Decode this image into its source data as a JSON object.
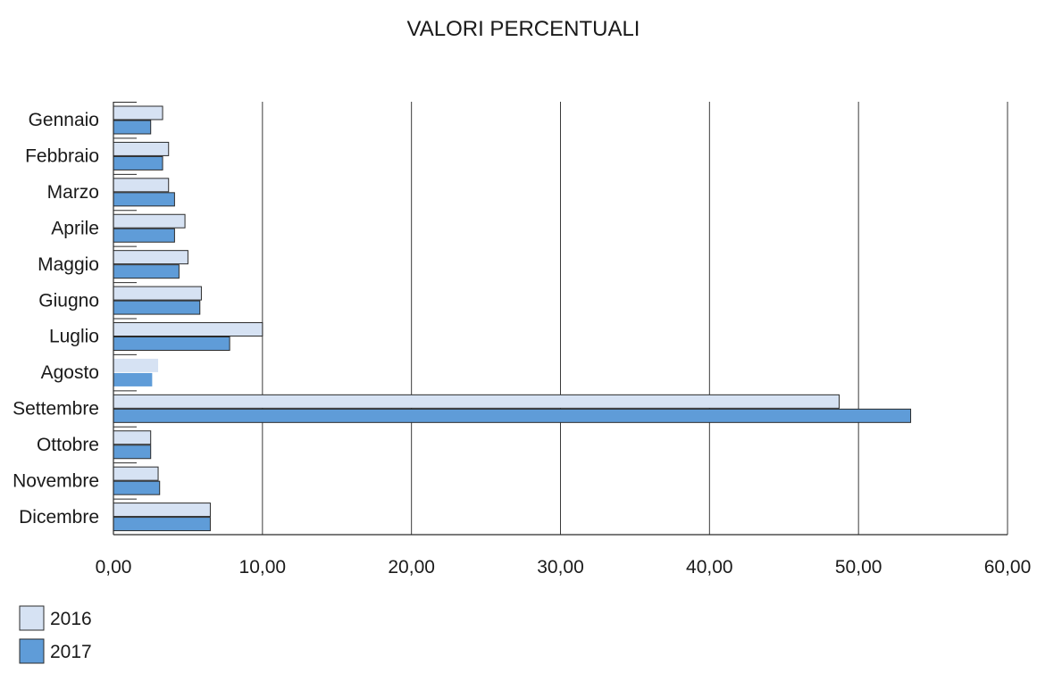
{
  "chart_data": {
    "type": "bar",
    "orientation": "horizontal",
    "title": "VALORI PERCENTUALI",
    "xlabel": "",
    "ylabel": "",
    "categories": [
      "Gennaio",
      "Febbraio",
      "Marzo",
      "Aprile",
      "Maggio",
      "Giugno",
      "Luglio",
      "Agosto",
      "Settembre",
      "Ottobre",
      "Novembre",
      "Dicembre"
    ],
    "series": [
      {
        "name": "2016",
        "color": "#d6e2f3",
        "values": [
          3.3,
          3.7,
          3.7,
          4.8,
          5.0,
          5.9,
          10.0,
          3.0,
          48.7,
          2.5,
          3.0,
          6.5
        ]
      },
      {
        "name": "2017",
        "color": "#5f9cd8",
        "values": [
          2.5,
          3.3,
          4.1,
          4.1,
          4.4,
          5.8,
          7.8,
          2.6,
          53.5,
          2.5,
          3.1,
          6.5
        ]
      }
    ],
    "xlim": [
      0,
      60
    ],
    "xticks": [
      0,
      10,
      20,
      30,
      40,
      50,
      60
    ],
    "xtick_labels": [
      "0,00",
      "10,00",
      "20,00",
      "30,00",
      "40,00",
      "50,00",
      "60,00"
    ],
    "grid": true,
    "legend_position": "bottom-left"
  }
}
